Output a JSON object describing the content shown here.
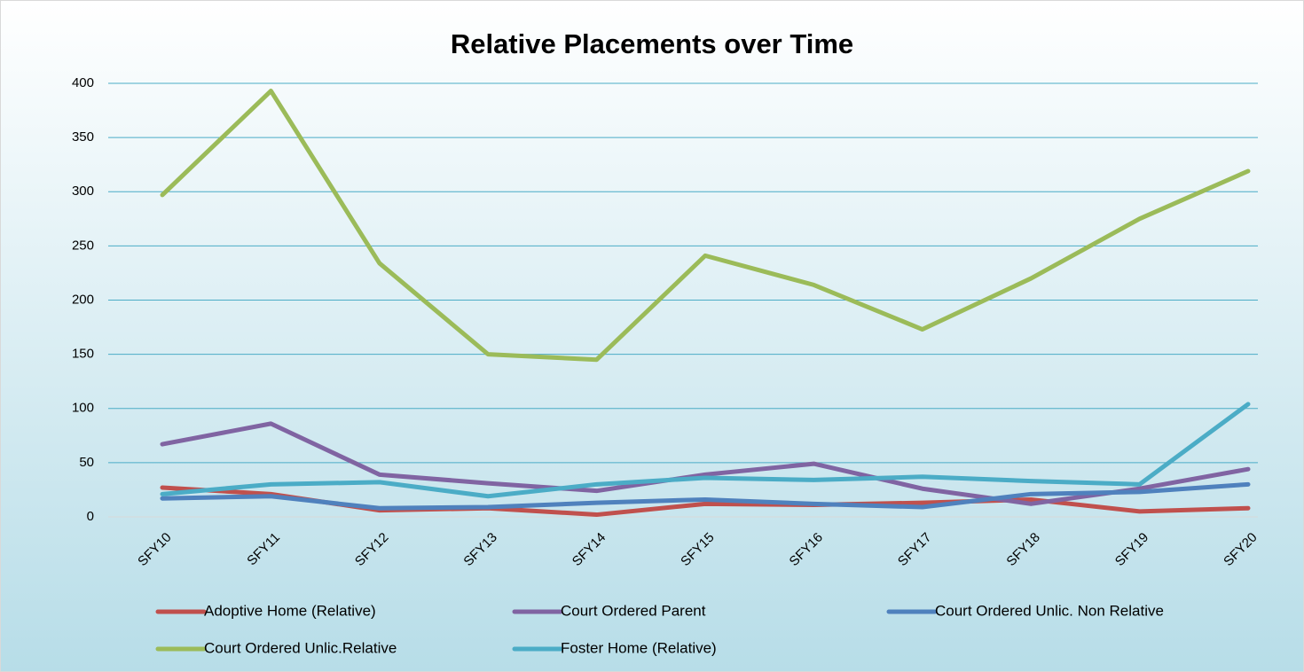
{
  "chart_data": {
    "type": "line",
    "title": "Relative Placements over Time",
    "categories": [
      "SFY10",
      "SFY11",
      "SFY12",
      "SFY13",
      "SFY14",
      "SFY15",
      "SFY16",
      "SFY17",
      "SFY18",
      "SFY19",
      "SFY20"
    ],
    "series": [
      {
        "name": "Adoptive Home (Relative)",
        "color": "#c0504d",
        "values": [
          27,
          21,
          6,
          8,
          2,
          12,
          11,
          13,
          16,
          5,
          8
        ]
      },
      {
        "name": "Court Ordered Parent",
        "color": "#8064a2",
        "values": [
          67,
          86,
          39,
          31,
          24,
          39,
          49,
          26,
          12,
          26,
          44
        ]
      },
      {
        "name": "Court Ordered Unlic. Non Relative",
        "color": "#4f81bd",
        "values": [
          17,
          19,
          8,
          9,
          13,
          16,
          12,
          9,
          21,
          23,
          30
        ]
      },
      {
        "name": "Court Ordered Unlic.Relative",
        "color": "#9bbb59",
        "values": [
          297,
          393,
          234,
          150,
          145,
          241,
          214,
          173,
          220,
          275,
          319
        ]
      },
      {
        "name": "Foster Home (Relative)",
        "color": "#4bacc6",
        "values": [
          21,
          30,
          32,
          19,
          30,
          36,
          34,
          37,
          33,
          30,
          104
        ]
      }
    ],
    "ylim": [
      0,
      400
    ],
    "yticks": [
      0,
      50,
      100,
      150,
      200,
      250,
      300,
      350,
      400
    ],
    "grid": true
  }
}
